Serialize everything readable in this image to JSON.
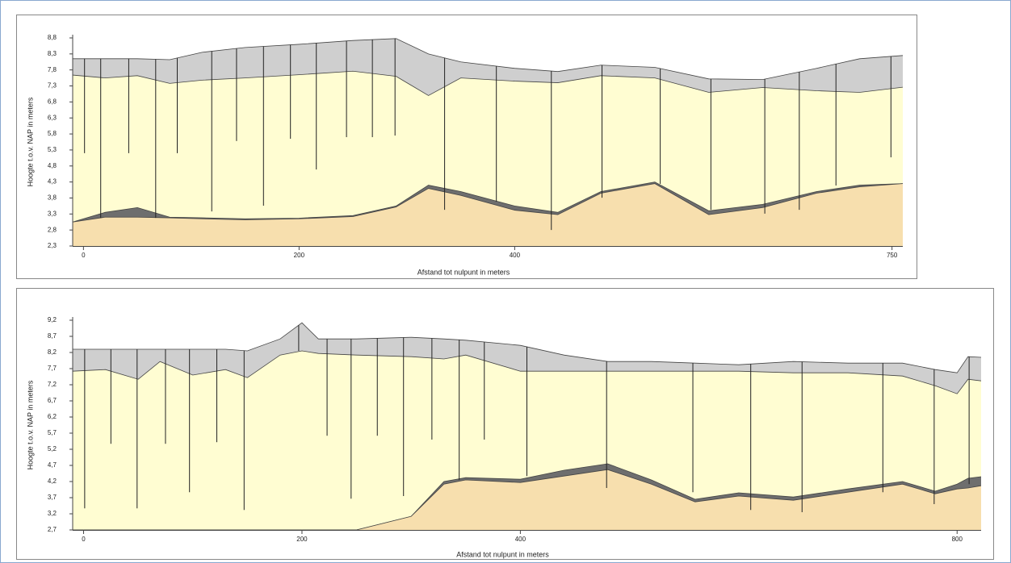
{
  "chart_data": [
    {
      "type": "area",
      "y_label": "Hoogte t.o.v. NAP in meters",
      "x_label": "Afstand tot nulpunt in meters",
      "xlim": [
        -10,
        760
      ],
      "ylim": [
        2.3,
        8.8
      ],
      "xticks": [
        0,
        200,
        400,
        750
      ],
      "yticks": [
        {
          "value": 8.8,
          "label": "8,8"
        },
        {
          "value": 8.3,
          "label": "8,3"
        },
        {
          "value": 7.8,
          "label": "7,8"
        },
        {
          "value": 7.3,
          "label": "7,3"
        },
        {
          "value": 6.8,
          "label": "6,8"
        },
        {
          "value": 6.3,
          "label": "6,3"
        },
        {
          "value": 5.8,
          "label": "5,8"
        },
        {
          "value": 5.3,
          "label": "5,3"
        },
        {
          "value": 4.8,
          "label": "4,8"
        },
        {
          "value": 4.3,
          "label": "4,3"
        },
        {
          "value": 3.8,
          "label": "3,8"
        },
        {
          "value": 3.3,
          "label": "3,3"
        },
        {
          "value": 2.8,
          "label": "2,8"
        },
        {
          "value": 2.3,
          "label": "2,3"
        }
      ],
      "x": [
        -10,
        20,
        50,
        80,
        110,
        150,
        200,
        250,
        290,
        320,
        350,
        400,
        440,
        480,
        530,
        580,
        630,
        680,
        720,
        760
      ],
      "series": [
        {
          "color": "#cfcfcf",
          "values": [
            8.15,
            8.15,
            8.15,
            8.12,
            8.35,
            8.5,
            8.6,
            8.72,
            8.78,
            8.3,
            8.05,
            7.85,
            7.75,
            7.95,
            7.88,
            7.52,
            7.5,
            7.85,
            8.15,
            8.25
          ]
        },
        {
          "color": "#fffdd2",
          "values": [
            7.64,
            7.55,
            7.62,
            7.38,
            7.48,
            7.55,
            7.65,
            7.76,
            7.6,
            7.0,
            7.55,
            7.45,
            7.4,
            7.62,
            7.55,
            7.1,
            7.25,
            7.15,
            7.1,
            7.26
          ]
        },
        {
          "color": "#6e6e6e",
          "values": [
            3.05,
            3.35,
            3.5,
            3.2,
            3.18,
            3.15,
            3.17,
            3.25,
            3.55,
            4.2,
            4.0,
            3.55,
            3.35,
            4.0,
            4.3,
            3.4,
            3.6,
            4.0,
            4.2,
            4.25
          ]
        },
        {
          "color": "#f7dfae",
          "values": [
            3.05,
            3.2,
            3.2,
            3.18,
            3.15,
            3.12,
            3.15,
            3.22,
            3.52,
            4.1,
            3.88,
            3.42,
            3.28,
            3.95,
            4.25,
            3.28,
            3.5,
            3.95,
            4.15,
            4.25
          ]
        }
      ],
      "boreholes": {
        "x": [
          1,
          16,
          42,
          67,
          87,
          119,
          142,
          167,
          192,
          216,
          244,
          268,
          289,
          335,
          383,
          434,
          481,
          535,
          582,
          632,
          664,
          698,
          749
        ],
        "bottom": [
          5.2,
          3.18,
          5.2,
          3.18,
          5.2,
          3.38,
          5.58,
          3.56,
          5.65,
          4.69,
          5.7,
          5.7,
          5.75,
          3.43,
          3.69,
          2.8,
          3.81,
          4.24,
          3.43,
          3.31,
          3.43,
          4.19,
          5.07
        ]
      }
    },
    {
      "type": "area",
      "y_label": "Hoogte t.o.v. NAP in meters",
      "x_label": "Afstand tot nulpunt in meters",
      "xlim": [
        -10,
        822
      ],
      "ylim": [
        2.7,
        9.2
      ],
      "xticks": [
        0,
        200,
        400,
        800
      ],
      "yticks": [
        {
          "value": 9.2,
          "label": "9,2"
        },
        {
          "value": 8.7,
          "label": "8,7"
        },
        {
          "value": 8.2,
          "label": "8,2"
        },
        {
          "value": 7.7,
          "label": "7,7"
        },
        {
          "value": 7.2,
          "label": "7,2"
        },
        {
          "value": 6.7,
          "label": "6,7"
        },
        {
          "value": 6.2,
          "label": "6,2"
        },
        {
          "value": 5.7,
          "label": "5,7"
        },
        {
          "value": 5.2,
          "label": "5,2"
        },
        {
          "value": 4.7,
          "label": "4,7"
        },
        {
          "value": 4.2,
          "label": "4,2"
        },
        {
          "value": 3.7,
          "label": "3,7"
        },
        {
          "value": 3.2,
          "label": "3,2"
        },
        {
          "value": 2.7,
          "label": "2,7"
        }
      ],
      "x": [
        -10,
        20,
        50,
        70,
        100,
        130,
        150,
        180,
        200,
        215,
        250,
        300,
        330,
        350,
        400,
        440,
        480,
        520,
        560,
        600,
        650,
        700,
        750,
        780,
        800,
        810,
        822
      ],
      "series": [
        {
          "color": "#cfcfcf",
          "values": [
            8.3,
            8.3,
            8.3,
            8.3,
            8.3,
            8.3,
            8.25,
            8.62,
            9.12,
            8.62,
            8.62,
            8.67,
            8.62,
            8.58,
            8.42,
            8.12,
            7.92,
            7.92,
            7.87,
            7.82,
            7.92,
            7.87,
            7.87,
            7.67,
            7.57,
            8.07,
            8.05
          ]
        },
        {
          "color": "#fffdd2",
          "values": [
            7.62,
            7.67,
            7.37,
            7.92,
            7.5,
            7.67,
            7.42,
            8.12,
            8.25,
            8.17,
            8.12,
            8.07,
            8.0,
            8.12,
            7.62,
            7.62,
            7.62,
            7.62,
            7.62,
            7.62,
            7.57,
            7.57,
            7.47,
            7.17,
            6.92,
            7.37,
            7.32
          ]
        },
        {
          "color": "#6e6e6e",
          "values": [
            2.7,
            2.7,
            2.7,
            2.7,
            2.7,
            2.7,
            2.7,
            2.7,
            2.7,
            2.7,
            2.7,
            3.12,
            4.2,
            4.32,
            4.27,
            4.55,
            4.75,
            4.25,
            3.65,
            3.85,
            3.72,
            3.97,
            4.2,
            3.9,
            4.12,
            4.3,
            4.35
          ]
        },
        {
          "color": "#f7dfae",
          "values": [
            2.7,
            2.7,
            2.7,
            2.7,
            2.7,
            2.7,
            2.7,
            2.7,
            2.7,
            2.7,
            2.7,
            3.12,
            4.12,
            4.25,
            4.17,
            4.37,
            4.57,
            4.12,
            3.57,
            3.75,
            3.62,
            3.87,
            4.12,
            3.82,
            3.97,
            4.0,
            4.07
          ]
        }
      ],
      "boreholes": {
        "x": [
          1,
          25,
          49,
          75,
          97,
          122,
          147,
          197,
          223,
          245,
          269,
          293,
          319,
          344,
          367,
          406,
          479,
          558,
          611,
          658,
          732,
          779,
          811
        ],
        "bottom": [
          3.37,
          5.37,
          3.37,
          5.37,
          3.87,
          5.42,
          3.32,
          8.25,
          5.62,
          3.67,
          5.62,
          3.75,
          5.5,
          4.25,
          5.5,
          4.37,
          4.0,
          3.87,
          3.32,
          3.25,
          3.87,
          3.5,
          4.12
        ]
      }
    }
  ]
}
